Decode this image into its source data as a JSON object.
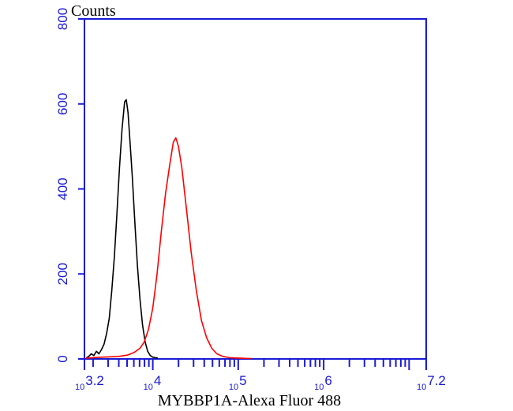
{
  "chart_data": {
    "type": "line",
    "title": "",
    "ylabel": "Counts",
    "xlabel": "MYBBP1A-Alexa Fluor 488",
    "x_scale": "log10",
    "xlim": [
      3.2,
      7.2
    ],
    "ylim": [
      0,
      800
    ],
    "y_ticks": [
      "0",
      "200",
      "400",
      "600",
      "800"
    ],
    "x_tick_labels": [
      {
        "base": "10",
        "exp": "3.2",
        "pos": 3.2
      },
      {
        "base": "10",
        "exp": "4",
        "pos": 4
      },
      {
        "base": "10",
        "exp": "5",
        "pos": 5
      },
      {
        "base": "10",
        "exp": "6",
        "pos": 6
      },
      {
        "base": "10",
        "exp": "7.2",
        "pos": 7.2
      }
    ],
    "grid": false,
    "axis_color": "#1a1ad6",
    "series": [
      {
        "color": "#000000",
        "points": [
          [
            3.22,
            2
          ],
          [
            3.25,
            6
          ],
          [
            3.28,
            12
          ],
          [
            3.31,
            8
          ],
          [
            3.34,
            18
          ],
          [
            3.37,
            12
          ],
          [
            3.4,
            22
          ],
          [
            3.43,
            35
          ],
          [
            3.46,
            60
          ],
          [
            3.49,
            95
          ],
          [
            3.52,
            160
          ],
          [
            3.55,
            240
          ],
          [
            3.58,
            340
          ],
          [
            3.61,
            450
          ],
          [
            3.64,
            540
          ],
          [
            3.67,
            605
          ],
          [
            3.69,
            610
          ],
          [
            3.71,
            580
          ],
          [
            3.73,
            520
          ],
          [
            3.76,
            430
          ],
          [
            3.79,
            320
          ],
          [
            3.82,
            220
          ],
          [
            3.85,
            140
          ],
          [
            3.88,
            80
          ],
          [
            3.91,
            40
          ],
          [
            3.94,
            18
          ],
          [
            3.97,
            8
          ],
          [
            4.0,
            4
          ],
          [
            4.03,
            3
          ],
          [
            4.06,
            2
          ]
        ]
      },
      {
        "color": "#ff0000",
        "points": [
          [
            3.22,
            2
          ],
          [
            3.3,
            3
          ],
          [
            3.4,
            4
          ],
          [
            3.5,
            5
          ],
          [
            3.6,
            6
          ],
          [
            3.7,
            9
          ],
          [
            3.78,
            15
          ],
          [
            3.85,
            25
          ],
          [
            3.9,
            40
          ],
          [
            3.95,
            70
          ],
          [
            4.0,
            120
          ],
          [
            4.05,
            200
          ],
          [
            4.1,
            300
          ],
          [
            4.15,
            390
          ],
          [
            4.2,
            460
          ],
          [
            4.24,
            510
          ],
          [
            4.27,
            520
          ],
          [
            4.3,
            500
          ],
          [
            4.34,
            450
          ],
          [
            4.39,
            360
          ],
          [
            4.45,
            250
          ],
          [
            4.51,
            160
          ],
          [
            4.57,
            90
          ],
          [
            4.63,
            50
          ],
          [
            4.69,
            25
          ],
          [
            4.75,
            12
          ],
          [
            4.82,
            6
          ],
          [
            4.9,
            3
          ],
          [
            5.0,
            2
          ],
          [
            5.15,
            1
          ]
        ]
      }
    ]
  }
}
